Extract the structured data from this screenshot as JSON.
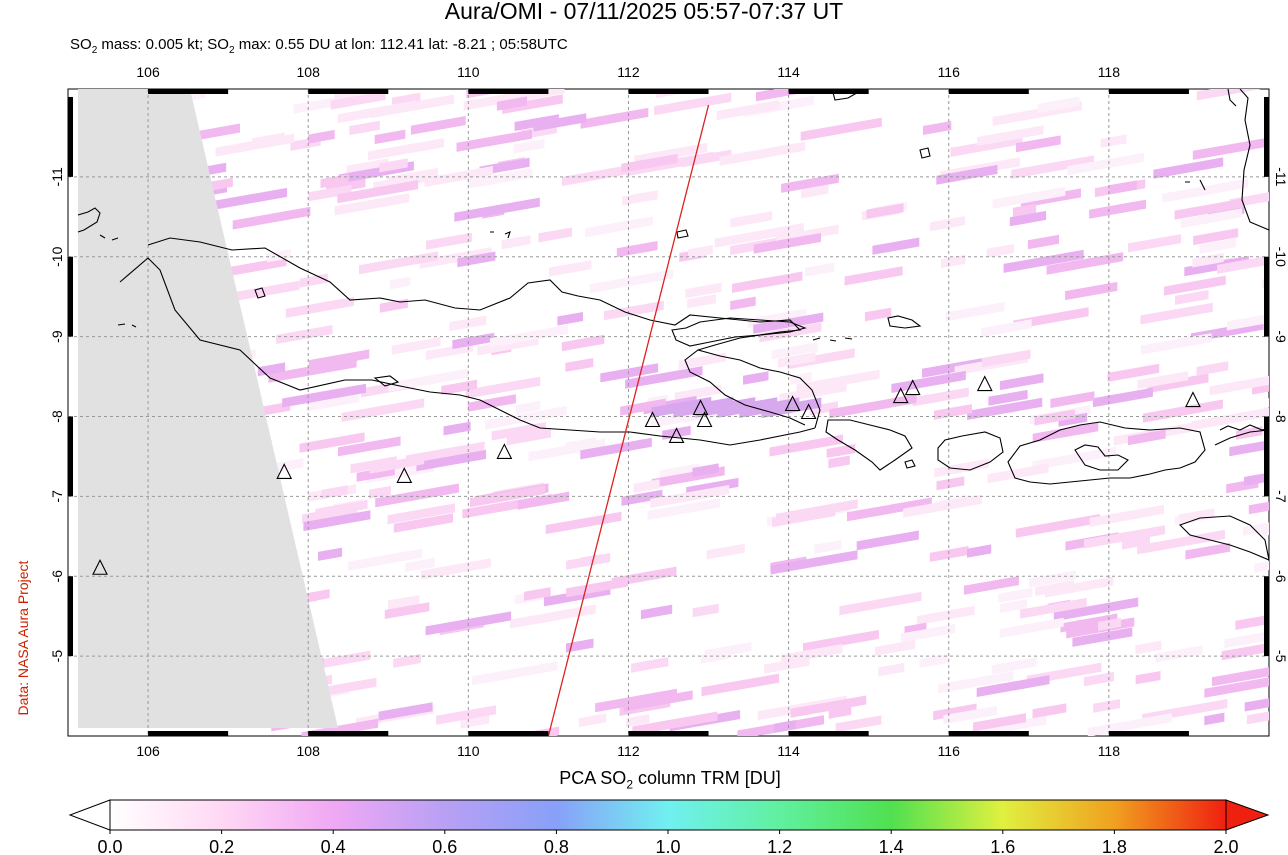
{
  "header": {
    "title": "Aura/OMI - 07/11/2025 05:57-07:37 UT",
    "subtitle_pre": "SO",
    "subtitle_sub": "2",
    "subtitle_mid": " mass: 0.005 kt; SO",
    "subtitle_sub2": "2",
    "subtitle_post": " max: 0.55 DU at lon: 112.41 lat: -8.21 ; 05:58UTC"
  },
  "credit": "Data: NASA Aura Project",
  "map": {
    "lon_range": [
      105,
      120
    ],
    "lat_range": [
      -12.1,
      -4.0
    ],
    "lon_ticks": [
      "106",
      "108",
      "110",
      "112",
      "114",
      "116",
      "118"
    ],
    "lat_ticks": [
      "-5",
      "-6",
      "-7",
      "-8",
      "-9",
      "-10",
      "-11"
    ],
    "orbit_track": {
      "start": [
        111.0,
        -4.0
      ],
      "end": [
        113.0,
        -11.9
      ],
      "color": "#dd2222"
    },
    "max_location": {
      "lon": 112.41,
      "lat": -8.21
    },
    "volcano_icon": "triangle-volcano-icon",
    "volcanoes": [
      {
        "lon": 105.4,
        "lat": -6.1
      },
      {
        "lon": 107.7,
        "lat": -7.3
      },
      {
        "lon": 109.2,
        "lat": -7.25
      },
      {
        "lon": 110.45,
        "lat": -7.55
      },
      {
        "lon": 112.3,
        "lat": -7.95
      },
      {
        "lon": 112.6,
        "lat": -7.75
      },
      {
        "lon": 112.95,
        "lat": -7.95
      },
      {
        "lon": 112.9,
        "lat": -8.1
      },
      {
        "lon": 114.05,
        "lat": -8.15
      },
      {
        "lon": 114.25,
        "lat": -8.05
      },
      {
        "lon": 115.4,
        "lat": -8.25
      },
      {
        "lon": 115.55,
        "lat": -8.35
      },
      {
        "lon": 116.45,
        "lat": -8.4
      },
      {
        "lon": 119.05,
        "lat": -8.2
      }
    ]
  },
  "colorbar": {
    "label_pre": "PCA SO",
    "label_sub": "2",
    "label_post": " column TRM [DU]",
    "ticks": [
      "0.0",
      "0.2",
      "0.4",
      "0.6",
      "0.8",
      "1.0",
      "1.2",
      "1.4",
      "1.6",
      "1.8",
      "2.0"
    ],
    "colors": [
      "#ffffff",
      "#ffd8f4",
      "#f0a8f4",
      "#b8a0f4",
      "#88a0f8",
      "#70f0f0",
      "#60f0a0",
      "#50e050",
      "#e0f040",
      "#f0a020",
      "#f02010"
    ]
  }
}
